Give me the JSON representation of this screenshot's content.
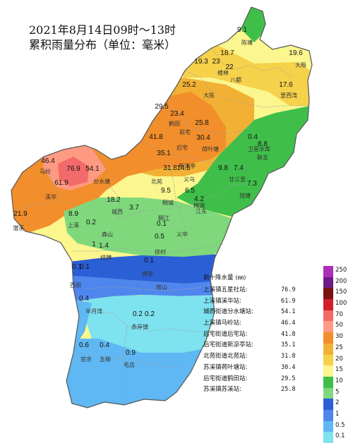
{
  "title": {
    "line1": "2021年8月14日09时～13时",
    "line2": "累积雨量分布（单位：毫米）"
  },
  "colors": {
    "c250": "#ad2fb6",
    "c200": "#6f1b87",
    "c150": "#7a1212",
    "c100": "#d21f2a",
    "c70": "#f26a6a",
    "c50": "#ff9a82",
    "c30": "#f28e2b",
    "c25": "#f2b134",
    "c20": "#f6d14a",
    "c15": "#fbf68e",
    "c10": "#3fbf4a",
    "c5": "#7fd87c",
    "c2": "#2b5fd6",
    "c1": "#4f86ee",
    "c05": "#5fb7f3",
    "c01": "#7ee2ef"
  },
  "legend": {
    "levels": [
      {
        "value": "250",
        "color": "#ad2fb6"
      },
      {
        "value": "200",
        "color": "#6f1b87"
      },
      {
        "value": "150",
        "color": "#7a1212"
      },
      {
        "value": "100",
        "color": "#d21f2a"
      },
      {
        "value": "70",
        "color": "#f26a6a"
      },
      {
        "value": "50",
        "color": "#ff9a82"
      },
      {
        "value": "30",
        "color": "#f28e2b"
      },
      {
        "value": "25",
        "color": "#f2b134"
      },
      {
        "value": "20",
        "color": "#f6d14a"
      },
      {
        "value": "15",
        "color": "#fbf68e"
      },
      {
        "value": "10",
        "color": "#3fbf4a"
      },
      {
        "value": "5",
        "color": "#7fd87c"
      },
      {
        "value": "2",
        "color": "#2b5fd6"
      },
      {
        "value": "1",
        "color": "#4f86ee"
      },
      {
        "value": "0.5",
        "color": "#5fb7f3"
      },
      {
        "value": "0.1",
        "color": "#7ee2ef"
      }
    ]
  },
  "ranking": {
    "title": "前十降水量 (㎜)",
    "rows": [
      {
        "name": "上溪镇五星社站:",
        "value": "76.9"
      },
      {
        "name": "上溪镇溪华站:",
        "value": "61.9"
      },
      {
        "name": "城西街道分水塘站:",
        "value": "54.1"
      },
      {
        "name": "上溪镇马岭站:",
        "value": "46.4"
      },
      {
        "name": "后宅街道后宅站:",
        "value": "41.8"
      },
      {
        "name": "后宅街道新凉亭站:",
        "value": "35.1"
      },
      {
        "name": "北苑街道北苑站:",
        "value": "31.8"
      },
      {
        "name": "苏溪镇荷叶塘站:",
        "value": "30.4"
      },
      {
        "name": "后宅街道鹤田站:",
        "value": "29.5"
      },
      {
        "name": "苏溪镇苏溪站:",
        "value": "25.8"
      }
    ]
  },
  "stations": [
    {
      "value": "9.1"
    },
    {
      "value": "18.7"
    },
    {
      "value": "19.6"
    },
    {
      "value": "19.3"
    },
    {
      "value": "23"
    },
    {
      "value": "22"
    },
    {
      "value": "25.2"
    },
    {
      "value": "17.6"
    },
    {
      "value": "29.5"
    },
    {
      "value": "23.4"
    },
    {
      "value": "25.8"
    },
    {
      "value": "30.4"
    },
    {
      "value": "0.4"
    },
    {
      "value": "8.8"
    },
    {
      "value": "41.8"
    },
    {
      "value": "35.1"
    },
    {
      "value": "46.4"
    },
    {
      "value": "76.9"
    },
    {
      "value": "54.1"
    },
    {
      "value": "61.9"
    },
    {
      "value": "31.8"
    },
    {
      "value": "14.5"
    },
    {
      "value": "9.8"
    },
    {
      "value": "7.4"
    },
    {
      "value": "18.2"
    },
    {
      "value": "9.5"
    },
    {
      "value": "6.5"
    },
    {
      "value": "4.2"
    },
    {
      "value": "7.3"
    },
    {
      "value": "21.9"
    },
    {
      "value": "8.9"
    },
    {
      "value": "3.7"
    },
    {
      "value": "0.2"
    },
    {
      "value": "0.1"
    },
    {
      "value": "1"
    },
    {
      "value": "1.4"
    },
    {
      "value": "0.5"
    },
    {
      "value": "0.1"
    },
    {
      "value": "0.1"
    },
    {
      "value": "0.1"
    },
    {
      "value": "0.4"
    },
    {
      "value": "0.2"
    },
    {
      "value": "0.2"
    },
    {
      "value": "0.6"
    },
    {
      "value": "0.4"
    },
    {
      "value": "0.9"
    }
  ],
  "places": [
    {
      "name": "陈塘"
    },
    {
      "name": "大畈"
    },
    {
      "name": "楂林"
    },
    {
      "name": "八都"
    },
    {
      "name": "大陈"
    },
    {
      "name": "里西湾"
    },
    {
      "name": "鹤田"
    },
    {
      "name": "前宅"
    },
    {
      "name": "荷叶塘"
    },
    {
      "name": "后宅"
    },
    {
      "name": "新凉亭"
    },
    {
      "name": "卫星水库"
    },
    {
      "name": "联五"
    },
    {
      "name": "马岭"
    },
    {
      "name": "分水塘"
    },
    {
      "name": "北苑"
    },
    {
      "name": "义乌"
    },
    {
      "name": "廿三里"
    },
    {
      "name": "溪华"
    },
    {
      "name": "钱塘"
    },
    {
      "name": "城西"
    },
    {
      "name": "稠城"
    },
    {
      "name": "梅湖"
    },
    {
      "name": "江东"
    },
    {
      "name": "潜溪"
    },
    {
      "name": "上溪"
    },
    {
      "name": "稠江"
    },
    {
      "name": "森山"
    },
    {
      "name": "义中"
    },
    {
      "name": "徐村"
    },
    {
      "name": "结牌"
    },
    {
      "name": "佛堂"
    },
    {
      "name": "西田"
    },
    {
      "name": "塔山"
    },
    {
      "name": "半月湾"
    },
    {
      "name": "赤岸镇"
    },
    {
      "name": "官余"
    },
    {
      "name": "五柳"
    },
    {
      "name": "毛店"
    }
  ]
}
